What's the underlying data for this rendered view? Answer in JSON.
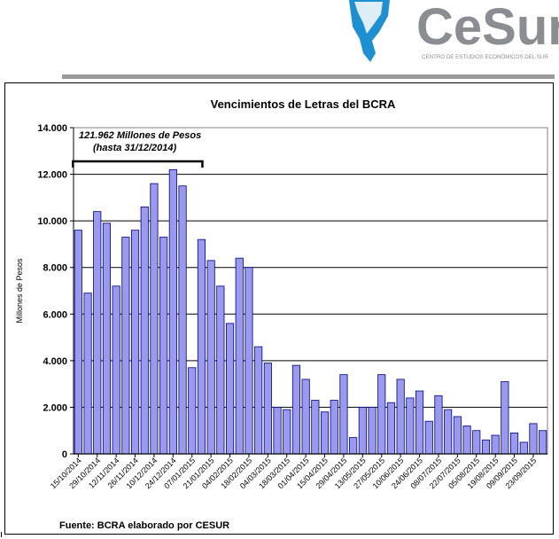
{
  "brand": {
    "name": "CeSur",
    "tagline": "CENTRO DE ESTUDIOS ECONÓMICOS DEL SUR",
    "colors": {
      "primary": "#8a8d91",
      "accent": "#1e8fd0"
    }
  },
  "chart_data": {
    "type": "bar",
    "title": "Vencimientos de Letras del BCRA",
    "ylabel": "Millones de Pesos",
    "xlabel": "",
    "ylim": [
      0,
      14000
    ],
    "yticks": [
      0,
      2000,
      4000,
      6000,
      8000,
      10000,
      12000,
      14000
    ],
    "ytick_labels": [
      "0",
      "2.000",
      "4.000",
      "6.000",
      "8.000",
      "10.000",
      "12.000",
      "14.000"
    ],
    "grid": "horizontal",
    "bar_color": "#9999ee",
    "bar_edge_color": "#000080",
    "source": "Fuente: BCRA elaborado por CESUR",
    "annotation": {
      "line1": "121.962 Millones de Pesos",
      "line2": "(hasta 31/12/2014)",
      "bracket_from_index": 0,
      "bracket_to_index": 13
    },
    "tick_labels": [
      "15/10/2014",
      "29/10/2014",
      "12/11/2014",
      "26/11/2014",
      "10/12/2014",
      "24/12/2014",
      "07/01/2015",
      "21/01/2015",
      "04/02/2015",
      "18/02/2015",
      "04/03/2015",
      "18/03/2015",
      "01/04/2015",
      "15/04/2015",
      "29/04/2015",
      "13/05/2015",
      "27/05/2015",
      "10/06/2015",
      "24/06/2015",
      "08/07/2015",
      "22/07/2015",
      "05/08/2015",
      "19/08/2015",
      "09/09/2015",
      "23/09/2015"
    ],
    "tick_indices": [
      0,
      2,
      4,
      6,
      8,
      10,
      12,
      14,
      16,
      18,
      20,
      22,
      24,
      26,
      28,
      30,
      32,
      34,
      36,
      38,
      40,
      42,
      44,
      46,
      48
    ],
    "values": [
      9600,
      6900,
      10400,
      9900,
      7200,
      9300,
      9600,
      10600,
      11600,
      9300,
      12200,
      11500,
      3700,
      9200,
      8300,
      7200,
      5600,
      8400,
      8000,
      4600,
      3900,
      2000,
      1900,
      3800,
      3200,
      2300,
      1800,
      2300,
      3400,
      700,
      2000,
      2000,
      3400,
      2200,
      3200,
      2400,
      2700,
      1400,
      2500,
      1900,
      1600,
      1200,
      1000,
      600,
      800,
      3100,
      900,
      500,
      1300,
      1000
    ]
  }
}
